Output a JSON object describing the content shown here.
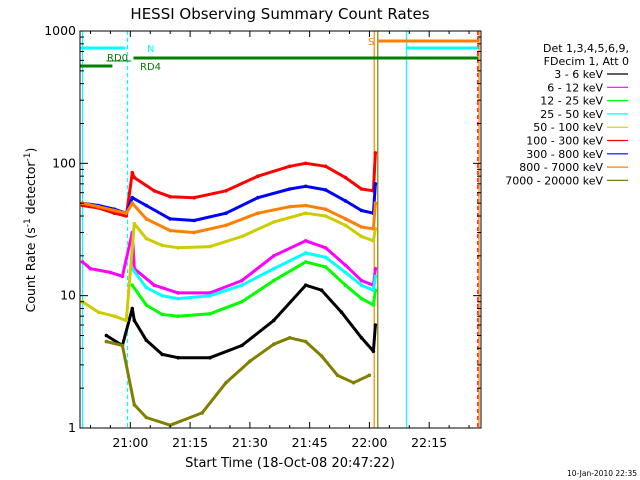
{
  "chart_data": {
    "type": "line",
    "title": "HESSI Observing Summary Count Rates",
    "xlabel": "Start Time (18-Oct-08 20:47:22)",
    "ylabel_main": "Count Rate (s",
    "ylabel_sup1": "-1",
    "ylabel_mid": " detector",
    "ylabel_sup2": "-1",
    "ylabel_end": ")",
    "footer_date": "10-Jan-2010 22:35",
    "y_scale": "log",
    "ylim": [
      1,
      1000
    ],
    "xlim": [
      47.37,
      148.0
    ],
    "x_unit": "minutes after 20:00",
    "x_ticks": [
      {
        "label": "21:00",
        "value": 60
      },
      {
        "label": "21:15",
        "value": 75
      },
      {
        "label": "21:30",
        "value": 90
      },
      {
        "label": "21:45",
        "value": 105
      },
      {
        "label": "22:00",
        "value": 120
      },
      {
        "label": "22:15",
        "value": 135
      }
    ],
    "y_ticks": [
      {
        "label": "1",
        "value": 1
      },
      {
        "label": "10",
        "value": 10
      },
      {
        "label": "100",
        "value": 100
      },
      {
        "label": "1000",
        "value": 1000
      }
    ],
    "legend_header": [
      "Det 1,3,4,5,6,9,",
      "FDecim 1, Att 0"
    ],
    "series": [
      {
        "name": "3 - 6 keV",
        "color": "#000000",
        "points": [
          [
            54,
            5
          ],
          [
            58,
            4.2
          ],
          [
            60.5,
            8
          ],
          [
            61,
            6.5
          ],
          [
            64,
            4.6
          ],
          [
            68,
            3.6
          ],
          [
            72,
            3.4
          ],
          [
            80,
            3.4
          ],
          [
            88,
            4.2
          ],
          [
            96,
            6.5
          ],
          [
            104,
            12
          ],
          [
            108,
            11
          ],
          [
            113,
            7.5
          ],
          [
            118,
            4.8
          ],
          [
            121,
            3.8
          ],
          [
            121.5,
            6
          ]
        ]
      },
      {
        "name": "6 - 12 keV",
        "color": "#ff00ff",
        "points": [
          [
            48,
            18
          ],
          [
            50,
            16
          ],
          [
            55,
            15
          ],
          [
            58,
            14
          ],
          [
            60.5,
            30
          ],
          [
            61,
            16
          ],
          [
            66,
            12
          ],
          [
            72,
            10.5
          ],
          [
            80,
            10.5
          ],
          [
            88,
            13
          ],
          [
            96,
            20
          ],
          [
            104,
            26
          ],
          [
            109,
            23
          ],
          [
            114,
            17
          ],
          [
            118,
            13
          ],
          [
            121,
            12
          ],
          [
            121.5,
            16
          ]
        ]
      },
      {
        "name": "12 - 25 keV",
        "color": "#00ff00",
        "points": [
          [
            60.5,
            12
          ],
          [
            64,
            8.5
          ],
          [
            68,
            7.2
          ],
          [
            72,
            7
          ],
          [
            80,
            7.3
          ],
          [
            88,
            9
          ],
          [
            96,
            13
          ],
          [
            104,
            18
          ],
          [
            109,
            16.5
          ],
          [
            114,
            12
          ],
          [
            118,
            9.5
          ],
          [
            121,
            8.5
          ],
          [
            121.5,
            11
          ]
        ]
      },
      {
        "name": "25 - 50 keV",
        "color": "#00ffff",
        "points": [
          [
            60.5,
            16
          ],
          [
            64,
            11.5
          ],
          [
            68,
            10
          ],
          [
            72,
            9.5
          ],
          [
            80,
            10
          ],
          [
            88,
            12
          ],
          [
            96,
            16
          ],
          [
            104,
            21
          ],
          [
            109,
            19.5
          ],
          [
            114,
            15
          ],
          [
            118,
            12
          ],
          [
            121,
            11
          ],
          [
            121.5,
            14
          ]
        ]
      },
      {
        "name": "50 - 100 keV",
        "color": "#cccc00",
        "points": [
          [
            48,
            9
          ],
          [
            52,
            7.5
          ],
          [
            56,
            7
          ],
          [
            59,
            6.5
          ],
          [
            61,
            35
          ],
          [
            64,
            27
          ],
          [
            68,
            24
          ],
          [
            72,
            23
          ],
          [
            80,
            23.5
          ],
          [
            88,
            28
          ],
          [
            96,
            36
          ],
          [
            104,
            42
          ],
          [
            109,
            40
          ],
          [
            114,
            34
          ],
          [
            118,
            28
          ],
          [
            121,
            26
          ],
          [
            121.5,
            32
          ]
        ]
      },
      {
        "name": "100 - 300 keV",
        "color": "#ff0000",
        "points": [
          [
            48,
            48
          ],
          [
            52,
            46
          ],
          [
            56,
            42
          ],
          [
            59,
            40
          ],
          [
            60.5,
            85
          ],
          [
            61,
            78
          ],
          [
            66,
            62
          ],
          [
            70,
            56
          ],
          [
            76,
            55
          ],
          [
            84,
            62
          ],
          [
            92,
            80
          ],
          [
            100,
            95
          ],
          [
            104,
            100
          ],
          [
            109,
            95
          ],
          [
            114,
            78
          ],
          [
            118,
            64
          ],
          [
            121,
            62
          ],
          [
            121.5,
            120
          ]
        ]
      },
      {
        "name": "300 - 800 keV",
        "color": "#0000ff",
        "points": [
          [
            48,
            50
          ],
          [
            52,
            48
          ],
          [
            56,
            45
          ],
          [
            59,
            42
          ],
          [
            60.5,
            55
          ],
          [
            64,
            48
          ],
          [
            70,
            38
          ],
          [
            76,
            37
          ],
          [
            84,
            42
          ],
          [
            92,
            55
          ],
          [
            100,
            64
          ],
          [
            104,
            67
          ],
          [
            109,
            63
          ],
          [
            114,
            52
          ],
          [
            118,
            44
          ],
          [
            121,
            42
          ],
          [
            121.5,
            70
          ]
        ]
      },
      {
        "name": "800 - 7000 keV",
        "color": "#ff8000",
        "points": [
          [
            48,
            50
          ],
          [
            52,
            47
          ],
          [
            56,
            44
          ],
          [
            59,
            42
          ],
          [
            60.5,
            50
          ],
          [
            64,
            38
          ],
          [
            70,
            31
          ],
          [
            76,
            30
          ],
          [
            84,
            34
          ],
          [
            92,
            42
          ],
          [
            100,
            47
          ],
          [
            104,
            48
          ],
          [
            109,
            45
          ],
          [
            114,
            38
          ],
          [
            118,
            33
          ],
          [
            121,
            32
          ],
          [
            121.5,
            50
          ]
        ]
      },
      {
        "name": "7000 - 20000 keV",
        "color": "#808000",
        "points": [
          [
            54,
            4.5
          ],
          [
            58,
            4.2
          ],
          [
            61,
            1.5
          ],
          [
            64,
            1.2
          ],
          [
            70,
            1.05
          ],
          [
            78,
            1.3
          ],
          [
            84,
            2.2
          ],
          [
            90,
            3.2
          ],
          [
            96,
            4.3
          ],
          [
            100,
            4.8
          ],
          [
            104,
            4.5
          ],
          [
            108,
            3.5
          ],
          [
            112,
            2.5
          ],
          [
            116,
            2.2
          ],
          [
            120,
            2.5
          ]
        ]
      }
    ],
    "flags": [
      {
        "label": "N",
        "color": "#00ffff"
      },
      {
        "label": "RD0",
        "color": "#008000"
      },
      {
        "label": "RD4",
        "color": "#008000"
      },
      {
        "label": "S",
        "color": "#ff8000"
      }
    ],
    "grid": false,
    "legend_position": "right"
  }
}
